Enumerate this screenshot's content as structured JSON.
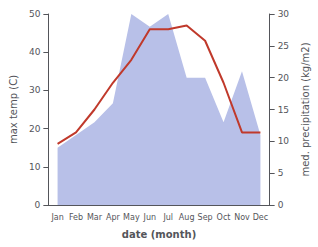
{
  "chart_data": {
    "type": "line",
    "categories": [
      "Jan",
      "Feb",
      "Mar",
      "Apr",
      "May",
      "Jun",
      "Jul",
      "Aug",
      "Sep",
      "Oct",
      "Nov",
      "Dec"
    ],
    "xlabel": "date (month)",
    "ylabel": "max temp (C)",
    "y2label": "med. precipitation (kg/m2)",
    "series": [
      {
        "type": "area",
        "axis": "y2",
        "color": "#b8c0e8",
        "values": [
          9,
          11,
          13,
          16,
          30,
          28,
          30,
          20,
          20,
          13,
          21,
          11
        ]
      },
      {
        "type": "line",
        "axis": "y",
        "color": "#c0392b",
        "values": [
          16,
          19,
          25,
          32,
          38,
          46,
          46,
          47,
          43,
          32,
          19,
          19
        ]
      }
    ],
    "ylim": [
      0,
      50
    ],
    "yticks": [
      0,
      10,
      20,
      30,
      40,
      50
    ],
    "y2lim": [
      0,
      30
    ],
    "y2ticks": [
      0,
      5,
      10,
      15,
      20,
      25,
      30
    ],
    "grid": false
  }
}
